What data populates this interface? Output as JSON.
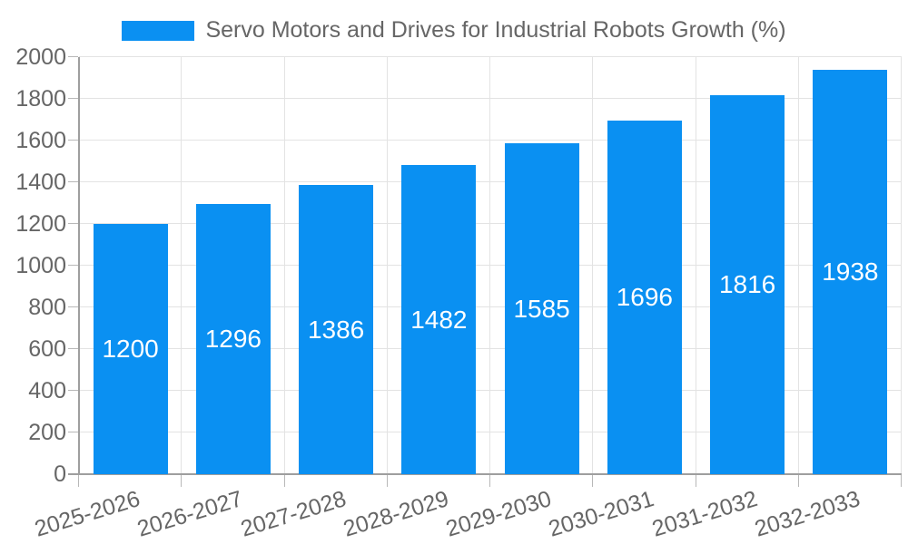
{
  "chart_data": {
    "type": "bar",
    "title": "Servo Motors and Drives for Industrial Robots Growth (%)",
    "categories": [
      "2025-2026",
      "2026-2027",
      "2027-2028",
      "2028-2029",
      "2029-2030",
      "2030-2031",
      "2031-2032",
      "2032-2033"
    ],
    "series": [
      {
        "name": "Servo Motors and Drives for Industrial Robots Growth (%)",
        "values": [
          1200,
          1296,
          1386,
          1482,
          1585,
          1696,
          1816,
          1938
        ]
      }
    ],
    "value_labels_shown": true,
    "xlabel": "",
    "ylabel": "",
    "ylim": [
      0,
      2000
    ],
    "yticks": [
      0,
      200,
      400,
      600,
      800,
      1000,
      1200,
      1400,
      1600,
      1800,
      2000
    ],
    "grid": true,
    "legend_position": "top-center",
    "x_label_rotation_deg": -17,
    "colors": {
      "bar": "#0A90F2",
      "grid": "#E3E3E3",
      "axis": "#9E9E9E",
      "tick_stub": "#B8B8B8",
      "tick_text": "#666666",
      "value_label_text": "#FFFFFF",
      "background": "#FFFFFF"
    }
  }
}
